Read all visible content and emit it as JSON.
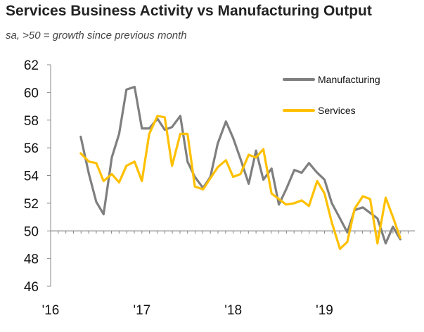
{
  "title": "Services Business Activity vs Manufacturing Output",
  "subtitle": "sa, >50 = growth since previous month",
  "colors": {
    "manufacturing": "#7f7f7f",
    "services": "#ffc000",
    "axis": "#888888"
  },
  "chart_data": {
    "type": "line",
    "title": "Services Business Activity vs Manufacturing Output",
    "subtitle": "sa, >50 = growth since previous month",
    "xlabel": "",
    "ylabel": "",
    "ylim": [
      46,
      62
    ],
    "yticks": [
      46,
      48,
      50,
      52,
      54,
      56,
      58,
      60,
      62
    ],
    "xlim": [
      2016.0,
      2019.99
    ],
    "xticks": [
      {
        "label": "'16",
        "x": 2016.0
      },
      {
        "label": "'17",
        "x": 2017.0
      },
      {
        "label": "'18",
        "x": 2018.0
      },
      {
        "label": "'19",
        "x": 2019.0
      }
    ],
    "reference_line": 50,
    "legend": {
      "position": "top-right",
      "entries": [
        "Manufacturing",
        "Services"
      ]
    },
    "series": [
      {
        "name": "Manufacturing",
        "x": [
          2016.33,
          2016.42,
          2016.5,
          2016.58,
          2016.67,
          2016.75,
          2016.83,
          2016.92,
          2017.0,
          2017.08,
          2017.17,
          2017.25,
          2017.33,
          2017.42,
          2017.5,
          2017.58,
          2017.67,
          2017.75,
          2017.83,
          2017.92,
          2018.0,
          2018.08,
          2018.17,
          2018.25,
          2018.33,
          2018.42,
          2018.5,
          2018.58,
          2018.67,
          2018.75,
          2018.83,
          2018.92,
          2019.0,
          2019.08,
          2019.17,
          2019.25,
          2019.33,
          2019.42,
          2019.5,
          2019.58,
          2019.67,
          2019.75,
          2019.83
        ],
        "values": [
          56.8,
          54.1,
          52.1,
          51.2,
          55.3,
          57.0,
          60.2,
          60.4,
          57.4,
          57.4,
          58.1,
          57.3,
          57.5,
          58.3,
          55.0,
          53.9,
          53.1,
          53.9,
          56.3,
          57.9,
          56.7,
          55.2,
          53.4,
          55.8,
          53.7,
          54.5,
          51.9,
          53.0,
          54.4,
          54.2,
          54.9,
          54.2,
          53.7,
          52.0,
          50.9,
          49.9,
          51.5,
          51.7,
          51.3,
          50.9,
          49.1,
          50.3,
          49.4
        ]
      },
      {
        "name": "Services",
        "x": [
          2016.33,
          2016.42,
          2016.5,
          2016.58,
          2016.67,
          2016.75,
          2016.83,
          2016.92,
          2017.0,
          2017.08,
          2017.17,
          2017.25,
          2017.33,
          2017.42,
          2017.5,
          2017.58,
          2017.67,
          2017.75,
          2017.83,
          2017.92,
          2018.0,
          2018.08,
          2018.17,
          2018.25,
          2018.33,
          2018.42,
          2018.5,
          2018.58,
          2018.67,
          2018.75,
          2018.83,
          2018.92,
          2019.0,
          2019.08,
          2019.17,
          2019.25,
          2019.33,
          2019.42,
          2019.5,
          2019.58,
          2019.67,
          2019.75,
          2019.83
        ],
        "values": [
          55.6,
          55.0,
          54.9,
          53.6,
          54.1,
          53.5,
          54.7,
          55.0,
          53.6,
          57.0,
          58.3,
          58.2,
          54.7,
          57.0,
          57.0,
          53.2,
          53.0,
          53.8,
          54.6,
          55.1,
          53.9,
          54.1,
          55.5,
          55.3,
          55.9,
          52.7,
          52.3,
          51.9,
          52.0,
          52.2,
          51.8,
          53.6,
          52.7,
          50.6,
          48.7,
          49.2,
          51.6,
          52.5,
          52.3,
          49.1,
          52.4,
          51.0,
          49.5
        ]
      }
    ]
  }
}
